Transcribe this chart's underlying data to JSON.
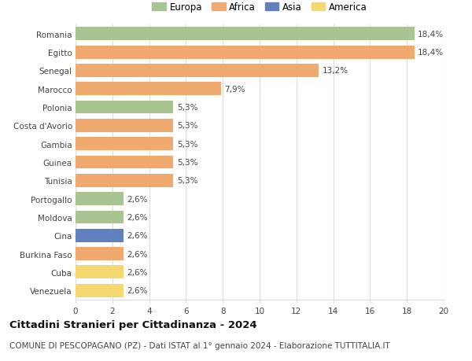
{
  "categories": [
    "Romania",
    "Egitto",
    "Senegal",
    "Marocco",
    "Polonia",
    "Costa d'Avorio",
    "Gambia",
    "Guinea",
    "Tunisia",
    "Portogallo",
    "Moldova",
    "Cina",
    "Burkina Faso",
    "Cuba",
    "Venezuela"
  ],
  "values": [
    18.4,
    18.4,
    13.2,
    7.9,
    5.3,
    5.3,
    5.3,
    5.3,
    5.3,
    2.6,
    2.6,
    2.6,
    2.6,
    2.6,
    2.6
  ],
  "labels": [
    "18,4%",
    "18,4%",
    "13,2%",
    "7,9%",
    "5,3%",
    "5,3%",
    "5,3%",
    "5,3%",
    "5,3%",
    "2,6%",
    "2,6%",
    "2,6%",
    "2,6%",
    "2,6%",
    "2,6%"
  ],
  "continents": [
    "Europa",
    "Africa",
    "Africa",
    "Africa",
    "Europa",
    "Africa",
    "Africa",
    "Africa",
    "Africa",
    "Europa",
    "Europa",
    "Asia",
    "Africa",
    "America",
    "America"
  ],
  "colors": {
    "Europa": "#a8c490",
    "Africa": "#f0aa70",
    "Asia": "#6080c0",
    "America": "#f5d870"
  },
  "legend_order": [
    "Europa",
    "Africa",
    "Asia",
    "America"
  ],
  "title": "Cittadini Stranieri per Cittadinanza - 2024",
  "subtitle": "COMUNE DI PESCOPAGANO (PZ) - Dati ISTAT al 1° gennaio 2024 - Elaborazione TUTTITALIA.IT",
  "xlim": [
    0,
    20
  ],
  "xticks": [
    0,
    2,
    4,
    6,
    8,
    10,
    12,
    14,
    16,
    18,
    20
  ],
  "background_color": "#ffffff",
  "grid_color": "#dddddd",
  "bar_height": 0.72,
  "title_fontsize": 9.5,
  "subtitle_fontsize": 7.5,
  "label_fontsize": 7.5,
  "tick_fontsize": 7.5,
  "legend_fontsize": 8.5
}
